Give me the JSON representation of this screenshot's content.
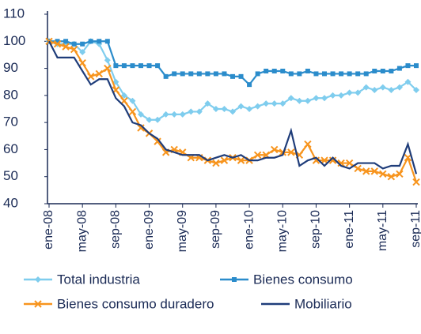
{
  "chart_data": {
    "type": "line",
    "categories": [
      "ene-08",
      null,
      null,
      null,
      "may-08",
      null,
      null,
      null,
      "sep-08",
      null,
      null,
      null,
      "ene-09",
      null,
      null,
      null,
      "may-09",
      null,
      null,
      null,
      "sep-09",
      null,
      null,
      null,
      "ene-10",
      null,
      null,
      null,
      "may-10",
      null,
      null,
      null,
      "sep-10",
      null,
      null,
      null,
      "ene-11",
      null,
      null,
      null,
      "may-11",
      null,
      null,
      null,
      "sep-11"
    ],
    "series": [
      {
        "name": "Total industria",
        "color": "#7fcdee",
        "marker": "diamond",
        "values": [
          100,
          99,
          99,
          99,
          96,
          100,
          99,
          93,
          85,
          80,
          78,
          73,
          71,
          71,
          73,
          73,
          73,
          74,
          74,
          77,
          75,
          75,
          74,
          76,
          75,
          76,
          77,
          77,
          77,
          79,
          78,
          78,
          79,
          79,
          80,
          80,
          81,
          81,
          83,
          82,
          83,
          82,
          83,
          85,
          82
        ]
      },
      {
        "name": "Bienes consumo",
        "color": "#2b8ccb",
        "marker": "square",
        "values": [
          100,
          100,
          100,
          99,
          99,
          100,
          100,
          100,
          91,
          91,
          91,
          91,
          91,
          91,
          87,
          88,
          88,
          88,
          88,
          88,
          88,
          88,
          87,
          87,
          84,
          88,
          89,
          89,
          89,
          88,
          88,
          89,
          88,
          88,
          88,
          88,
          88,
          88,
          88,
          89,
          89,
          89,
          90,
          91,
          91
        ]
      },
      {
        "name": "Bienes consumo duradero",
        "color": "#f7941d",
        "marker": "x",
        "values": [
          100,
          99,
          98,
          97,
          92,
          87,
          88,
          90,
          82,
          78,
          74,
          68,
          66,
          63,
          59,
          60,
          59,
          57,
          57,
          56,
          55,
          56,
          57,
          56,
          56,
          58,
          58,
          60,
          59,
          59,
          58,
          62,
          56,
          56,
          56,
          55,
          55,
          53,
          52,
          52,
          51,
          50,
          51,
          57,
          48
        ]
      },
      {
        "name": "Mobiliario",
        "color": "#1f3d7a",
        "marker": "none",
        "values": [
          100,
          94,
          94,
          94,
          89,
          84,
          86,
          86,
          79,
          76,
          70,
          69,
          66,
          64,
          60,
          59,
          58,
          58,
          58,
          56,
          57,
          58,
          57,
          58,
          56,
          56,
          57,
          57,
          58,
          67,
          54,
          56,
          57,
          54,
          57,
          54,
          53,
          55,
          55,
          55,
          53,
          54,
          54,
          62,
          51
        ]
      }
    ],
    "ylim": [
      40,
      110
    ],
    "yticks": [
      40,
      50,
      60,
      70,
      80,
      90,
      100,
      110
    ]
  }
}
